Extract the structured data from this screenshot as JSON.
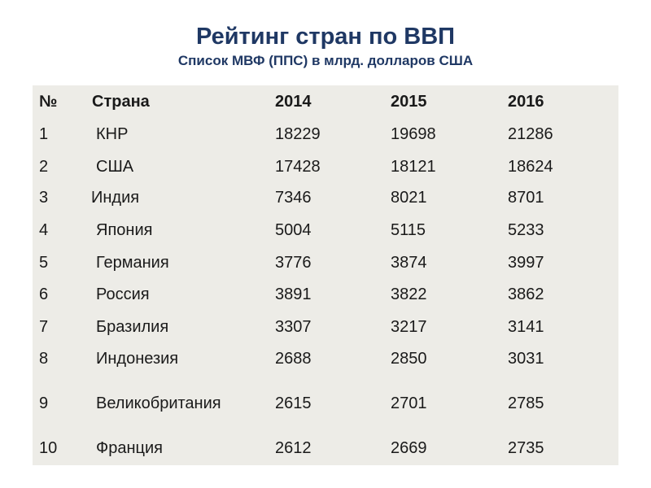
{
  "slide": {
    "title": "Рейтинг стран по ВВП",
    "subtitle": "Список МВФ (ППС) в млрд. долларов США"
  },
  "table": {
    "headers": {
      "num": "№",
      "country": "Страна",
      "y2014": "2014",
      "y2015": "2015",
      "y2016": "2016"
    },
    "rows": [
      {
        "num": 1,
        "country": "КНР",
        "y2014": 18229,
        "y2015": 19698,
        "y2016": 21286
      },
      {
        "num": 2,
        "country": "США",
        "y2014": 17428,
        "y2015": 18121,
        "y2016": 18624
      },
      {
        "num": 3,
        "country": "Индия",
        "y2014": 7346,
        "y2015": 8021,
        "y2016": 8701
      },
      {
        "num": 4,
        "country": "Япония",
        "y2014": 5004,
        "y2015": 5115,
        "y2016": 5233
      },
      {
        "num": 5,
        "country": "Германия",
        "y2014": 3776,
        "y2015": 3874,
        "y2016": 3997
      },
      {
        "num": 6,
        "country": "Россия",
        "y2014": 3891,
        "y2015": 3822,
        "y2016": 3862
      },
      {
        "num": 7,
        "country": "Бразилия",
        "y2014": 3307,
        "y2015": 3217,
        "y2016": 3141
      },
      {
        "num": 8,
        "country": "Индонезия",
        "y2014": 2688,
        "y2015": 2850,
        "y2016": 3031
      },
      {
        "num": 9,
        "country": "Великобритания",
        "y2014": 2615,
        "y2015": 2701,
        "y2016": 2785
      },
      {
        "num": 10,
        "country": "Франция",
        "y2014": 2612,
        "y2015": 2669,
        "y2016": 2735
      }
    ]
  },
  "colors": {
    "title": "#1f3864",
    "table_background": "#edece7",
    "text": "#1a1a1a"
  }
}
